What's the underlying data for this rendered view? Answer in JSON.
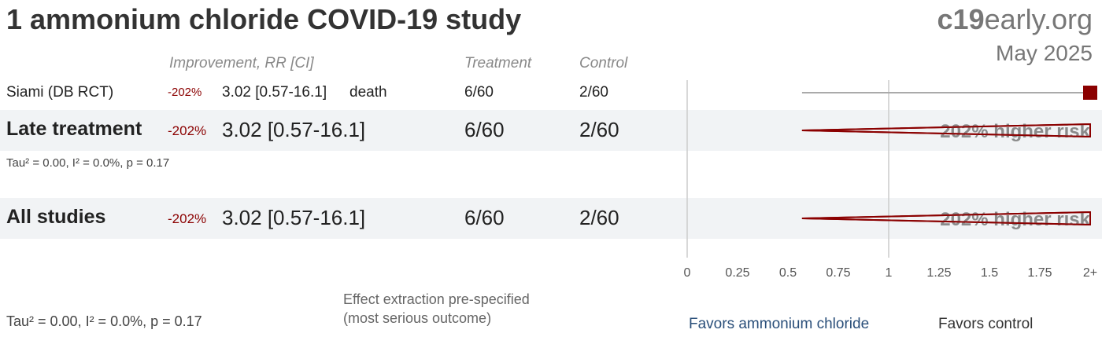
{
  "title": "1 ammonium chloride COVID-19 study",
  "brand": {
    "strong": "c19",
    "rest": "early.org"
  },
  "date": "May 2025",
  "columns": {
    "improvement": "Improvement, RR [CI]",
    "treatment": "Treatment",
    "control": "Control"
  },
  "rows": [
    {
      "label": "Siami (DB RCT)",
      "pct": "-202%",
      "rr": "3.02 [0.57-16.1]",
      "outcome": "death",
      "treatment": "6/60",
      "control": "2/60"
    },
    {
      "label": "Late treatment",
      "pct": "-202%",
      "rr": "3.02 [0.57-16.1]",
      "treatment": "6/60",
      "control": "2/60",
      "risk_label": "202% higher risk",
      "stats": "Tau² = 0.00, I² = 0.0%, p = 0.17"
    },
    {
      "label": "All studies",
      "pct": "-202%",
      "rr": "3.02 [0.57-16.1]",
      "treatment": "6/60",
      "control": "2/60",
      "risk_label": "202% higher risk"
    }
  ],
  "footer": {
    "stats": "Tau² = 0.00, I² = 0.0%, p = 0.17",
    "note_line1": "Effect extraction pre-specified",
    "note_line2": "(most serious outcome)",
    "favors_left": "Favors ammonium chloride",
    "favors_right": "Favors control"
  },
  "colors": {
    "accent": "#8b0000",
    "favors_left": "#2a4f7a",
    "band": "#f1f3f5"
  },
  "chart_data": {
    "type": "forest",
    "x_ticks": [
      "0",
      "0.25",
      "0.5",
      "0.75",
      "1",
      "1.25",
      "1.5",
      "1.75",
      "2+"
    ],
    "xlim": [
      0,
      2
    ],
    "reference_line": 1,
    "studies": [
      {
        "name": "Siami (DB RCT)",
        "rr": 3.02,
        "ci_low": 0.57,
        "ci_high": 16.1
      }
    ],
    "summaries": [
      {
        "name": "Late treatment",
        "rr": 3.02,
        "ci_low": 0.57,
        "ci_high": 16.1
      },
      {
        "name": "All studies",
        "rr": 3.02,
        "ci_low": 0.57,
        "ci_high": 16.1
      }
    ]
  }
}
